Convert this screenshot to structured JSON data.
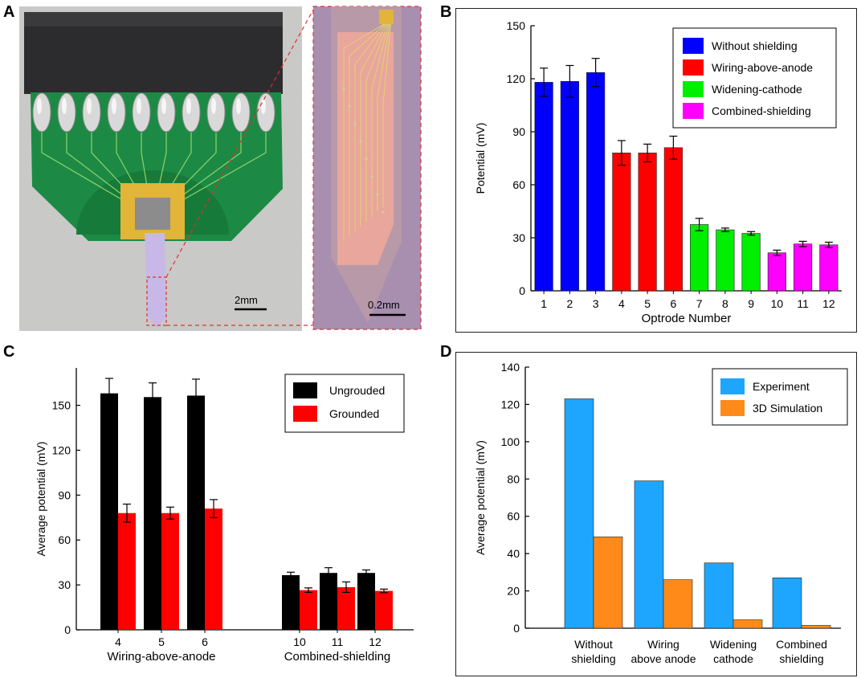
{
  "panels": {
    "a": {
      "letter": "A",
      "scale_left": "2mm",
      "scale_right": "0.2mm"
    },
    "b": {
      "letter": "B"
    },
    "c": {
      "letter": "C"
    },
    "d": {
      "letter": "D"
    }
  },
  "colors": {
    "blue": "#0000ff",
    "red": "#ff0000",
    "green": "#00ee00",
    "magenta": "#ff00ff",
    "black": "#000000",
    "sky": "#1ea6ff",
    "orange": "#ff8a1a",
    "pcb_green": "#1c8a45",
    "gold": "#e2b437",
    "probe_bg": "#a88fb0",
    "probe_trace": "#f0a89a"
  },
  "chart_data": [
    {
      "id": "B",
      "type": "bar",
      "xlabel": "Optrode Number",
      "ylabel": "Potential (mV)",
      "ylim": [
        0,
        150
      ],
      "yticks": [
        0,
        30,
        60,
        90,
        120,
        150
      ],
      "categories": [
        "1",
        "2",
        "3",
        "4",
        "5",
        "6",
        "7",
        "8",
        "9",
        "10",
        "11",
        "12"
      ],
      "values": [
        118,
        118.5,
        123.5,
        78,
        78,
        81,
        37.5,
        34.5,
        32.5,
        21.5,
        26.5,
        26
      ],
      "errors": [
        8,
        9,
        8,
        7,
        5,
        6.5,
        3.5,
        1,
        1,
        1.5,
        1.5,
        1.5
      ],
      "bar_series": [
        "Without shielding",
        "Without shielding",
        "Without shielding",
        "Wiring-above-anode",
        "Wiring-above-anode",
        "Wiring-above-anode",
        "Widening-cathode",
        "Widening-cathode",
        "Widening-cathode",
        "Combined-shielding",
        "Combined-shielding",
        "Combined-shielding"
      ],
      "legend": [
        {
          "name": "Without shielding",
          "color": "#0000ff"
        },
        {
          "name": "Wiring-above-anode",
          "color": "#ff0000"
        },
        {
          "name": "Widening-cathode",
          "color": "#00ee00"
        },
        {
          "name": "Combined-shielding",
          "color": "#ff00ff"
        }
      ],
      "legend_position": "top-right"
    },
    {
      "id": "C",
      "type": "bar",
      "ylabel": "Average potential (mV)",
      "ylim": [
        0,
        175
      ],
      "yticks": [
        0,
        30,
        60,
        90,
        120,
        150
      ],
      "categories": [
        "4",
        "5",
        "6",
        "10",
        "11",
        "12"
      ],
      "groups": [
        {
          "label": "Wiring-above-anode",
          "categories": [
            "4",
            "5",
            "6"
          ]
        },
        {
          "label": "Combined-shielding",
          "categories": [
            "10",
            "11",
            "12"
          ]
        }
      ],
      "series": [
        {
          "name": "Ungrouded",
          "color": "#000000",
          "values": [
            158,
            155.5,
            156.5,
            36.5,
            38,
            38
          ],
          "errors": [
            10,
            9.5,
            11,
            2,
            3.5,
            2
          ]
        },
        {
          "name": "Grounded",
          "color": "#ff0000",
          "values": [
            78,
            78,
            81,
            26.5,
            28.5,
            26
          ],
          "errors": [
            6,
            4,
            6,
            1.5,
            3.5,
            1.2
          ]
        }
      ],
      "legend_position": "top-right"
    },
    {
      "id": "D",
      "type": "bar",
      "ylabel": "Average potential (mV)",
      "ylim": [
        0,
        140
      ],
      "yticks": [
        0,
        20,
        40,
        60,
        80,
        100,
        120,
        140
      ],
      "categories": [
        "Without shielding",
        "Wiring above anode",
        "Widening cathode",
        "Combined shielding"
      ],
      "category_lines": [
        [
          "Without",
          "shielding"
        ],
        [
          "Wiring",
          "above anode"
        ],
        [
          "Widening",
          "cathode"
        ],
        [
          "Combined",
          "shielding"
        ]
      ],
      "series": [
        {
          "name": "Experiment",
          "color": "#1ea6ff",
          "values": [
            123,
            79,
            35,
            27
          ]
        },
        {
          "name": "3D Simulation",
          "color": "#ff8a1a",
          "values": [
            49,
            26,
            4.5,
            1.5
          ]
        }
      ],
      "legend_position": "top-right"
    }
  ]
}
